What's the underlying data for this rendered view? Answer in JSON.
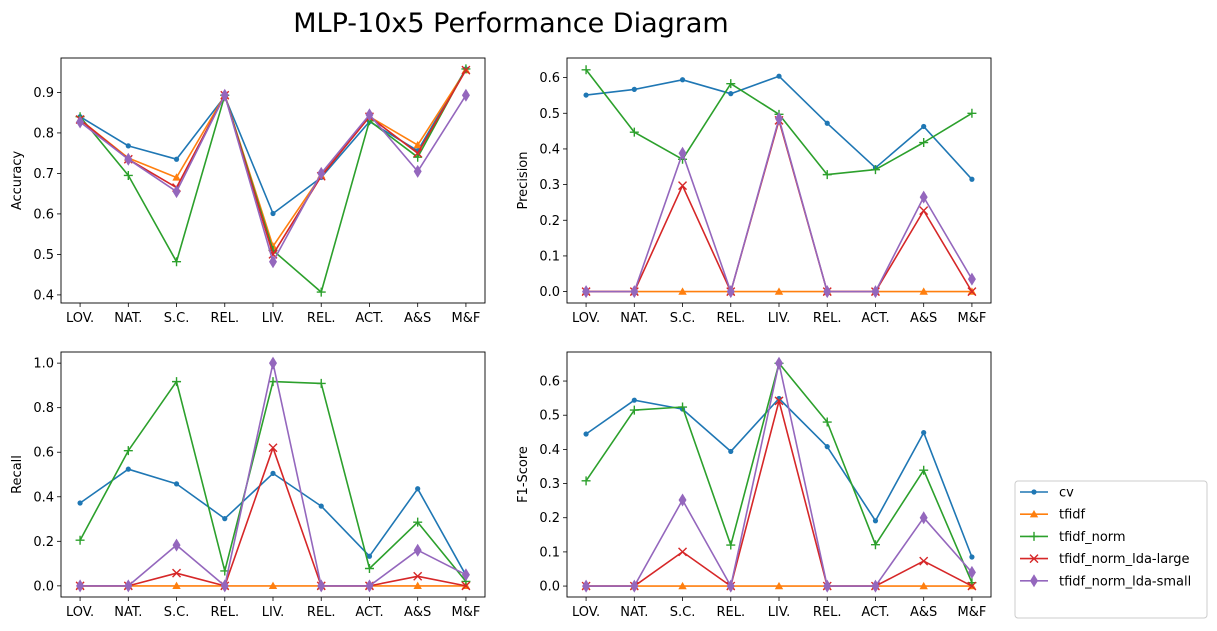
{
  "title": "MLP-10x5 Performance Diagram",
  "series_styles": [
    {
      "name": "cv",
      "color": "#1f77b4",
      "marker": "point"
    },
    {
      "name": "tfidf",
      "color": "#ff7f0e",
      "marker": "triangle"
    },
    {
      "name": "tfidf_norm",
      "color": "#2ca02c",
      "marker": "plus"
    },
    {
      "name": "tfidf_norm_lda-large",
      "color": "#d62728",
      "marker": "x"
    },
    {
      "name": "tfidf_norm_lda-small",
      "color": "#9467bd",
      "marker": "diamond"
    }
  ],
  "chart_data": [
    {
      "type": "line",
      "ylabel": "Accuracy",
      "categories": [
        "LOV.",
        "NAT.",
        "S.C.",
        "REL.",
        "LIV.",
        "REL.",
        "ACT.",
        "A&S",
        "M&F"
      ],
      "ylim": [
        0.38,
        0.985
      ],
      "yticks": [
        0.4,
        0.5,
        0.6,
        0.7,
        0.8,
        0.9
      ],
      "ytick_labels": [
        "0.4",
        "0.5",
        "0.6",
        "0.7",
        "0.8",
        "0.9"
      ],
      "series": [
        {
          "name": "cv",
          "values": [
            0.84,
            0.768,
            0.735,
            0.89,
            0.601,
            0.69,
            0.828,
            0.756,
            0.958
          ]
        },
        {
          "name": "tfidf",
          "values": [
            0.833,
            0.738,
            0.69,
            0.893,
            0.52,
            0.695,
            0.84,
            0.77,
            0.955
          ]
        },
        {
          "name": "tfidf_norm",
          "values": [
            0.84,
            0.695,
            0.482,
            0.893,
            0.51,
            0.407,
            0.83,
            0.74,
            0.958
          ]
        },
        {
          "name": "tfidf_norm_lda-large",
          "values": [
            0.833,
            0.735,
            0.665,
            0.893,
            0.5,
            0.693,
            0.84,
            0.75,
            0.955
          ]
        },
        {
          "name": "tfidf_norm_lda-small",
          "values": [
            0.827,
            0.735,
            0.655,
            0.893,
            0.482,
            0.7,
            0.845,
            0.705,
            0.893
          ]
        }
      ]
    },
    {
      "type": "line",
      "ylabel": "Precision",
      "categories": [
        "LOV.",
        "NAT.",
        "S.C.",
        "REL.",
        "LIV.",
        "REL.",
        "ACT.",
        "A&S",
        "M&F"
      ],
      "ylim": [
        -0.032,
        0.655
      ],
      "yticks": [
        0.0,
        0.1,
        0.2,
        0.3,
        0.4,
        0.5,
        0.6
      ],
      "ytick_labels": [
        "0.0",
        "0.1",
        "0.2",
        "0.3",
        "0.4",
        "0.5",
        "0.6"
      ],
      "series": [
        {
          "name": "cv",
          "values": [
            0.551,
            0.567,
            0.594,
            0.555,
            0.604,
            0.472,
            0.347,
            0.463,
            0.315
          ]
        },
        {
          "name": "tfidf",
          "values": [
            0,
            0,
            0,
            0,
            0,
            0,
            0,
            0,
            0
          ]
        },
        {
          "name": "tfidf_norm",
          "values": [
            0.622,
            0.447,
            0.371,
            0.583,
            0.497,
            0.328,
            0.342,
            0.418,
            0.5
          ]
        },
        {
          "name": "tfidf_norm_lda-large",
          "values": [
            0,
            0,
            0.297,
            0,
            0.48,
            0,
            0,
            0.227,
            0
          ]
        },
        {
          "name": "tfidf_norm_lda-small",
          "values": [
            0,
            0,
            0.388,
            0,
            0.485,
            0,
            0,
            0.265,
            0.035
          ]
        }
      ]
    },
    {
      "type": "line",
      "ylabel": "Recall",
      "categories": [
        "LOV.",
        "NAT.",
        "S.C.",
        "REL.",
        "LIV.",
        "REL.",
        "ACT.",
        "A&S",
        "M&F"
      ],
      "ylim": [
        -0.05,
        1.05
      ],
      "yticks": [
        0.0,
        0.2,
        0.4,
        0.6,
        0.8,
        1.0
      ],
      "ytick_labels": [
        "0.0",
        "0.2",
        "0.4",
        "0.6",
        "0.8",
        "1.0"
      ],
      "series": [
        {
          "name": "cv",
          "values": [
            0.372,
            0.524,
            0.458,
            0.302,
            0.505,
            0.358,
            0.133,
            0.436,
            0.048
          ]
        },
        {
          "name": "tfidf",
          "values": [
            0,
            0,
            0,
            0,
            0,
            0,
            0,
            0,
            0
          ]
        },
        {
          "name": "tfidf_norm",
          "values": [
            0.205,
            0.607,
            0.917,
            0.067,
            0.917,
            0.909,
            0.078,
            0.286,
            0.02
          ]
        },
        {
          "name": "tfidf_norm_lda-large",
          "values": [
            0,
            0,
            0.057,
            0,
            0.62,
            0,
            0,
            0.043,
            0
          ]
        },
        {
          "name": "tfidf_norm_lda-small",
          "values": [
            0,
            0,
            0.183,
            0,
            1.0,
            0,
            0,
            0.16,
            0.05
          ]
        }
      ]
    },
    {
      "type": "line",
      "ylabel": "F1-Score",
      "categories": [
        "LOV.",
        "NAT.",
        "S.C.",
        "REL.",
        "LIV.",
        "REL.",
        "ACT.",
        "A&S",
        "M&F"
      ],
      "ylim": [
        -0.032,
        0.685
      ],
      "yticks": [
        0.0,
        0.1,
        0.2,
        0.3,
        0.4,
        0.5,
        0.6
      ],
      "ytick_labels": [
        "0.0",
        "0.1",
        "0.2",
        "0.3",
        "0.4",
        "0.5",
        "0.6"
      ],
      "series": [
        {
          "name": "cv",
          "values": [
            0.445,
            0.544,
            0.518,
            0.394,
            0.549,
            0.408,
            0.191,
            0.449,
            0.085
          ]
        },
        {
          "name": "tfidf",
          "values": [
            0,
            0,
            0,
            0,
            0,
            0,
            0,
            0,
            0
          ]
        },
        {
          "name": "tfidf_norm",
          "values": [
            0.308,
            0.515,
            0.524,
            0.12,
            0.652,
            0.48,
            0.121,
            0.339,
            0.01
          ]
        },
        {
          "name": "tfidf_norm_lda-large",
          "values": [
            0,
            0,
            0.1,
            0,
            0.542,
            0,
            0,
            0.073,
            0
          ]
        },
        {
          "name": "tfidf_norm_lda-small",
          "values": [
            0,
            0,
            0.252,
            0,
            0.652,
            0,
            0,
            0.2,
            0.04
          ]
        }
      ]
    }
  ],
  "legend_placement": "bottom-right outside"
}
